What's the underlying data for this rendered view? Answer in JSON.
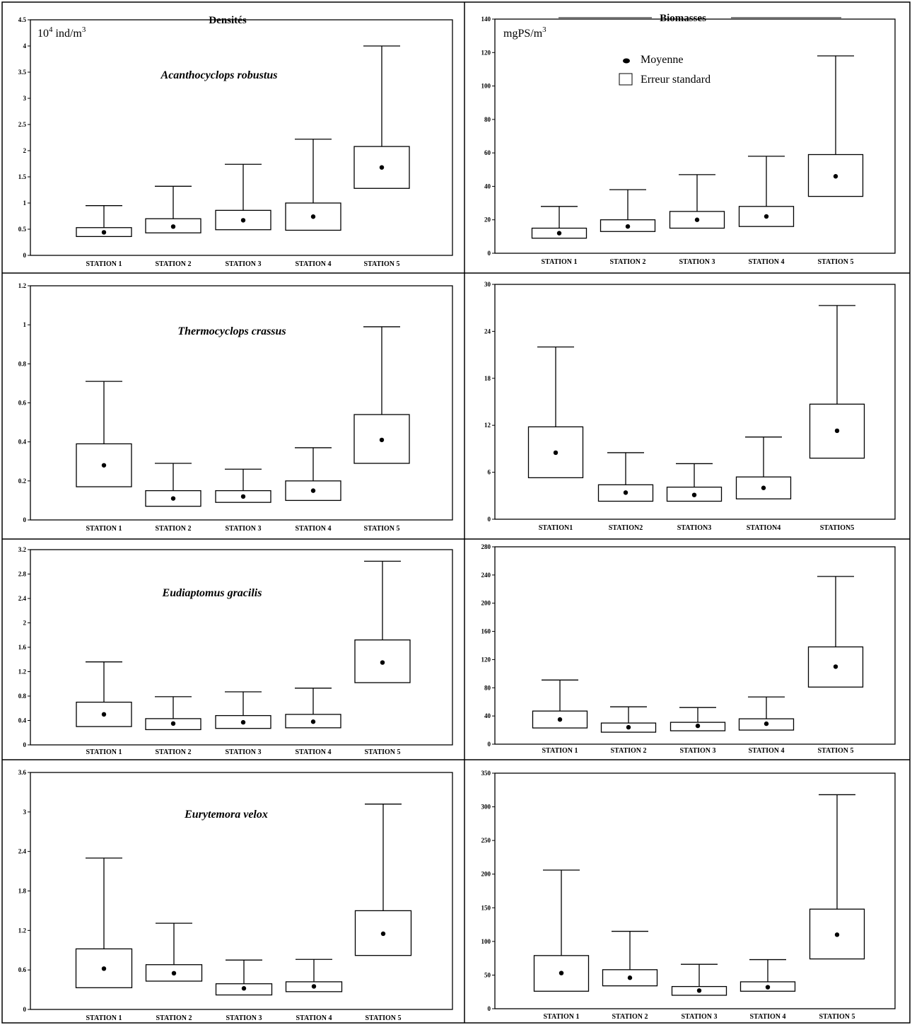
{
  "page": {
    "left_title": "Densités",
    "right_title": "Biomasses",
    "left_unit": "10",
    "left_unit_exp": "4",
    "left_unit_rest": " ind/m",
    "left_unit_exp2": "3",
    "right_unit": "mgPS/m",
    "right_unit_exp": "3",
    "legend_mean": "Moyenne",
    "legend_se": "Erreur standard"
  },
  "chart_data": [
    {
      "type": "box",
      "panel": "densite-acanthocyclops",
      "species": "Acanthocyclops robustus",
      "categories": [
        "STATION 1",
        "STATION 2",
        "STATION 3",
        "STATION 4",
        "STATION 5"
      ],
      "mean": [
        0.44,
        0.55,
        0.67,
        0.74,
        1.68
      ],
      "box_low": [
        0.36,
        0.43,
        0.49,
        0.48,
        1.28
      ],
      "box_high": [
        0.53,
        0.7,
        0.86,
        1.0,
        2.08
      ],
      "whisker_high": [
        0.95,
        1.32,
        1.74,
        2.22,
        4.0
      ],
      "ylim": [
        0,
        4.5
      ],
      "yticks": [
        "0",
        "0.5",
        "1",
        "1.5",
        "2",
        "2.5",
        "3",
        "3.5",
        "4",
        "4.5"
      ]
    },
    {
      "type": "box",
      "panel": "biomasse-acanthocyclops",
      "categories": [
        "STATION 1",
        "STATION 2",
        "STATION 3",
        "STATION 4",
        "STATION 5"
      ],
      "mean": [
        12,
        16,
        20,
        22,
        46
      ],
      "box_low": [
        9,
        13,
        15,
        16,
        34
      ],
      "box_high": [
        15,
        20,
        25,
        28,
        59
      ],
      "whisker_high": [
        28,
        38,
        47,
        58,
        118
      ],
      "ylim": [
        0,
        140
      ],
      "yticks": [
        "0",
        "20",
        "40",
        "60",
        "80",
        "100",
        "120",
        "140"
      ]
    },
    {
      "type": "box",
      "panel": "densite-thermocyclops",
      "species": "Thermocyclops crassus",
      "categories": [
        "STATION 1",
        "STATION 2",
        "STATION 3",
        "STATION 4",
        "STATION 5"
      ],
      "mean": [
        0.28,
        0.11,
        0.12,
        0.15,
        0.41
      ],
      "box_low": [
        0.17,
        0.07,
        0.09,
        0.1,
        0.29
      ],
      "box_high": [
        0.39,
        0.15,
        0.15,
        0.2,
        0.54
      ],
      "whisker_high": [
        0.71,
        0.29,
        0.26,
        0.37,
        0.99
      ],
      "ylim": [
        0,
        1.2
      ],
      "yticks": [
        "0",
        "0.2",
        "0.4",
        "0.6",
        "0.8",
        "1",
        "1.2"
      ]
    },
    {
      "type": "box",
      "panel": "biomasse-thermocyclops",
      "categories": [
        "STATION1",
        "STATION2",
        "STATION3",
        "STATION4",
        "STATION5"
      ],
      "mean": [
        8.5,
        3.4,
        3.1,
        4.0,
        11.3
      ],
      "box_low": [
        5.3,
        2.3,
        2.3,
        2.6,
        7.8
      ],
      "box_high": [
        11.8,
        4.4,
        4.1,
        5.4,
        14.7
      ],
      "whisker_high": [
        22.0,
        8.5,
        7.1,
        10.5,
        27.3
      ],
      "ylim": [
        0,
        30
      ],
      "yticks": [
        "0",
        "6",
        "12",
        "18",
        "24",
        "30"
      ]
    },
    {
      "type": "box",
      "panel": "densite-eudiaptomus",
      "species": "Eudiaptomus gracilis",
      "categories": [
        "STATION 1",
        "STATION 2",
        "STATION 3",
        "STATION 4",
        "STATION 5"
      ],
      "mean": [
        0.5,
        0.35,
        0.37,
        0.38,
        1.35
      ],
      "box_low": [
        0.3,
        0.25,
        0.27,
        0.28,
        1.02
      ],
      "box_high": [
        0.7,
        0.43,
        0.48,
        0.5,
        1.72
      ],
      "whisker_high": [
        1.36,
        0.79,
        0.87,
        0.93,
        3.01
      ],
      "ylim": [
        0,
        3.2
      ],
      "yticks": [
        "0",
        "0.4",
        "0.8",
        "1.2",
        "1.6",
        "2",
        "2.4",
        "2.8",
        "3.2"
      ]
    },
    {
      "type": "box",
      "panel": "biomasse-eudiaptomus",
      "categories": [
        "STATION 1",
        "STATION 2",
        "STATION 3",
        "STATION 4",
        "STATION 5"
      ],
      "mean": [
        35,
        24,
        26,
        29,
        110
      ],
      "box_low": [
        23,
        17,
        19,
        20,
        81
      ],
      "box_high": [
        47,
        30,
        31,
        36,
        138
      ],
      "whisker_high": [
        91,
        53,
        52,
        67,
        238
      ],
      "ylim": [
        0,
        280
      ],
      "yticks": [
        "0",
        "40",
        "80",
        "120",
        "160",
        "200",
        "240",
        "280"
      ]
    },
    {
      "type": "box",
      "panel": "densite-eurytemora",
      "species": "Eurytemora velox",
      "categories": [
        "STATION 1",
        "STATION 2",
        "STATION 3",
        "STATION 4",
        "STATION 5"
      ],
      "mean": [
        0.62,
        0.55,
        0.32,
        0.35,
        1.15
      ],
      "box_low": [
        0.33,
        0.43,
        0.22,
        0.27,
        0.82
      ],
      "box_high": [
        0.92,
        0.68,
        0.39,
        0.42,
        1.5
      ],
      "whisker_high": [
        2.3,
        1.31,
        0.75,
        0.76,
        3.12
      ],
      "ylim": [
        0,
        3.6
      ],
      "yticks": [
        "0",
        "0.6",
        "1.2",
        "1.8",
        "2.4",
        "3",
        "3.6"
      ]
    },
    {
      "type": "box",
      "panel": "biomasse-eurytemora",
      "categories": [
        "STATION 1",
        "STATION 2",
        "STATION 3",
        "STATION 4",
        "STATION 5"
      ],
      "mean": [
        53,
        46,
        27,
        32,
        110
      ],
      "box_low": [
        26,
        34,
        20,
        26,
        74
      ],
      "box_high": [
        79,
        58,
        33,
        40,
        148
      ],
      "whisker_high": [
        206,
        115,
        66,
        73,
        318
      ],
      "ylim": [
        0,
        350
      ],
      "yticks": [
        "0",
        "50",
        "100",
        "150",
        "200",
        "250",
        "300",
        "350"
      ]
    }
  ]
}
